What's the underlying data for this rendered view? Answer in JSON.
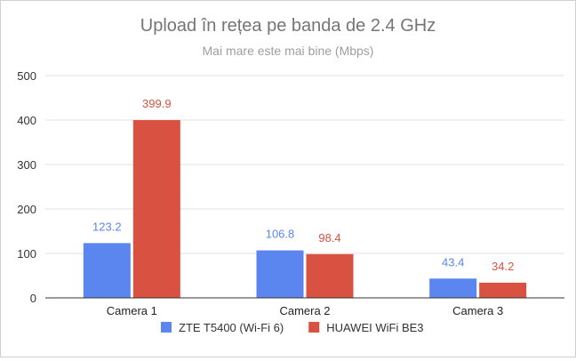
{
  "chart_data": {
    "type": "bar",
    "title": "Upload în rețea pe banda de 2.4 GHz",
    "subtitle": "Mai mare este mai bine (Mbps)",
    "xlabel": "",
    "ylabel": "",
    "ylim": [
      0,
      500
    ],
    "yticks": [
      0,
      100,
      200,
      300,
      400,
      500
    ],
    "categories": [
      "Camera 1",
      "Camera 2",
      "Camera 3"
    ],
    "series": [
      {
        "name": "ZTE T5400 (Wi-Fi 6)",
        "color": "#5b86f0",
        "values": [
          123.2,
          106.8,
          43.4
        ],
        "labels": [
          "123.2",
          "106.8",
          "43.4"
        ]
      },
      {
        "name": "HUAWEI WiFi BE3",
        "color": "#d95140",
        "values": [
          399.9,
          98.4,
          34.2
        ],
        "labels": [
          "399.9",
          "98.4",
          "34.2"
        ]
      }
    ],
    "grid": true,
    "legend": "bottom"
  }
}
